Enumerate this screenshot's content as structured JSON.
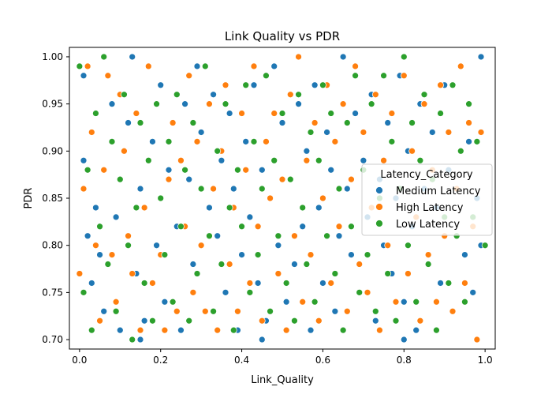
{
  "chart_data": {
    "type": "scatter",
    "title": "Link Quality vs PDR",
    "xlabel": "Link_Quality",
    "ylabel": "PDR",
    "xlim": [
      -0.025,
      1.025
    ],
    "ylim": [
      0.69,
      1.01
    ],
    "xticks": [
      {
        "value": 0.0,
        "label": "0.0"
      },
      {
        "value": 0.2,
        "label": "0.2"
      },
      {
        "value": 0.4,
        "label": "0.4"
      },
      {
        "value": 0.6,
        "label": "0.6"
      },
      {
        "value": 0.8,
        "label": "0.8"
      },
      {
        "value": 1.0,
        "label": "1.0"
      }
    ],
    "yticks": [
      {
        "value": 0.7,
        "label": "0.70"
      },
      {
        "value": 0.75,
        "label": "0.75"
      },
      {
        "value": 0.8,
        "label": "0.80"
      },
      {
        "value": 0.85,
        "label": "0.85"
      },
      {
        "value": 0.9,
        "label": "0.90"
      },
      {
        "value": 0.95,
        "label": "0.95"
      },
      {
        "value": 1.0,
        "label": "1.00"
      }
    ],
    "grid": false,
    "legend": {
      "title": "Latency_Category",
      "position": "center-right"
    },
    "series": [
      {
        "name": "Medium Latency",
        "color": "#1f77b4",
        "points": [
          [
            0.01,
            0.98
          ],
          [
            0.01,
            0.89
          ],
          [
            0.02,
            0.81
          ],
          [
            0.03,
            0.76
          ],
          [
            0.04,
            0.84
          ],
          [
            0.05,
            0.79
          ],
          [
            0.06,
            0.73
          ],
          [
            0.08,
            0.95
          ],
          [
            0.09,
            0.83
          ],
          [
            0.1,
            0.71
          ],
          [
            0.12,
            0.93
          ],
          [
            0.13,
            1.0
          ],
          [
            0.14,
            0.77
          ],
          [
            0.15,
            0.86
          ],
          [
            0.16,
            0.72
          ],
          [
            0.18,
            0.91
          ],
          [
            0.19,
            0.8
          ],
          [
            0.2,
            0.97
          ],
          [
            0.21,
            0.74
          ],
          [
            0.22,
            0.88
          ],
          [
            0.24,
            0.82
          ],
          [
            0.25,
            0.71
          ],
          [
            0.26,
            0.95
          ],
          [
            0.27,
            0.87
          ],
          [
            0.28,
            0.78
          ],
          [
            0.29,
            0.99
          ],
          [
            0.3,
            0.92
          ],
          [
            0.31,
            0.73
          ],
          [
            0.32,
            0.84
          ],
          [
            0.33,
            0.96
          ],
          [
            0.34,
            0.81
          ],
          [
            0.35,
            0.89
          ],
          [
            0.36,
            0.75
          ],
          [
            0.37,
            0.94
          ],
          [
            0.38,
            0.86
          ],
          [
            0.39,
            0.71
          ],
          [
            0.4,
            0.79
          ],
          [
            0.41,
            0.91
          ],
          [
            0.42,
            0.83
          ],
          [
            0.43,
            0.97
          ],
          [
            0.44,
            0.76
          ],
          [
            0.45,
            0.88
          ],
          [
            0.46,
            0.72
          ],
          [
            0.47,
            0.85
          ],
          [
            0.48,
            0.99
          ],
          [
            0.49,
            0.8
          ],
          [
            0.5,
            0.93
          ],
          [
            0.51,
            0.74
          ],
          [
            0.52,
            0.87
          ],
          [
            0.53,
            0.78
          ],
          [
            0.54,
            0.95
          ],
          [
            0.55,
            0.82
          ],
          [
            0.56,
            0.9
          ],
          [
            0.57,
            0.71
          ],
          [
            0.58,
            0.97
          ],
          [
            0.59,
            0.84
          ],
          [
            0.6,
            0.76
          ],
          [
            0.61,
            0.92
          ],
          [
            0.62,
            0.88
          ],
          [
            0.63,
            0.73
          ],
          [
            0.64,
            0.81
          ],
          [
            0.65,
            1.0
          ],
          [
            0.66,
            0.86
          ],
          [
            0.67,
            0.79
          ],
          [
            0.68,
            0.94
          ],
          [
            0.69,
            0.75
          ],
          [
            0.7,
            0.89
          ],
          [
            0.71,
            0.83
          ],
          [
            0.72,
            0.96
          ],
          [
            0.73,
            0.72
          ],
          [
            0.74,
            0.87
          ],
          [
            0.75,
            0.8
          ],
          [
            0.76,
            0.93
          ],
          [
            0.77,
            0.77
          ],
          [
            0.78,
            0.85
          ],
          [
            0.79,
            0.98
          ],
          [
            0.8,
            0.74
          ],
          [
            0.81,
            0.9
          ],
          [
            0.82,
            0.82
          ],
          [
            0.83,
            0.71
          ],
          [
            0.84,
            0.95
          ],
          [
            0.85,
            0.86
          ],
          [
            0.86,
            0.78
          ],
          [
            0.87,
            0.92
          ],
          [
            0.88,
            0.84
          ],
          [
            0.89,
            0.76
          ],
          [
            0.9,
            0.97
          ],
          [
            0.91,
            0.88
          ],
          [
            0.92,
            0.73
          ],
          [
            0.93,
            0.81
          ],
          [
            0.94,
            0.99
          ],
          [
            0.95,
            0.79
          ],
          [
            0.96,
            0.91
          ],
          [
            0.97,
            0.75
          ],
          [
            0.98,
            0.85
          ],
          [
            0.99,
            1.0
          ],
          [
            0.99,
            0.8
          ],
          [
            0.15,
            0.7
          ],
          [
            0.45,
            0.7
          ],
          [
            0.8,
            0.7
          ]
        ]
      },
      {
        "name": "High Latency",
        "color": "#ff7f0e",
        "points": [
          [
            0.0,
            0.77
          ],
          [
            0.01,
            0.86
          ],
          [
            0.02,
            0.99
          ],
          [
            0.03,
            0.92
          ],
          [
            0.04,
            0.8
          ],
          [
            0.05,
            0.72
          ],
          [
            0.06,
            0.88
          ],
          [
            0.07,
            0.98
          ],
          [
            0.08,
            0.79
          ],
          [
            0.09,
            0.74
          ],
          [
            0.1,
            0.96
          ],
          [
            0.11,
            0.9
          ],
          [
            0.12,
            0.81
          ],
          [
            0.13,
            0.77
          ],
          [
            0.14,
            0.94
          ],
          [
            0.15,
            0.71
          ],
          [
            0.16,
            0.84
          ],
          [
            0.17,
            0.99
          ],
          [
            0.18,
            0.76
          ],
          [
            0.19,
            0.95
          ],
          [
            0.2,
            0.79
          ],
          [
            0.21,
            0.71
          ],
          [
            0.22,
            0.87
          ],
          [
            0.23,
            0.93
          ],
          [
            0.24,
            0.73
          ],
          [
            0.25,
            0.89
          ],
          [
            0.26,
            0.82
          ],
          [
            0.27,
            0.98
          ],
          [
            0.28,
            0.75
          ],
          [
            0.29,
            0.91
          ],
          [
            0.3,
            0.8
          ],
          [
            0.31,
            0.73
          ],
          [
            0.32,
            0.95
          ],
          [
            0.33,
            0.86
          ],
          [
            0.34,
            0.71
          ],
          [
            0.35,
            0.9
          ],
          [
            0.36,
            0.97
          ],
          [
            0.37,
            0.78
          ],
          [
            0.38,
            0.84
          ],
          [
            0.39,
            0.73
          ],
          [
            0.4,
            0.94
          ],
          [
            0.41,
            0.88
          ],
          [
            0.42,
            0.76
          ],
          [
            0.43,
            0.99
          ],
          [
            0.44,
            0.82
          ],
          [
            0.45,
            0.72
          ],
          [
            0.46,
            0.91
          ],
          [
            0.47,
            0.85
          ],
          [
            0.48,
            0.94
          ],
          [
            0.49,
            0.77
          ],
          [
            0.5,
            0.87
          ],
          [
            0.51,
            0.71
          ],
          [
            0.52,
            0.96
          ],
          [
            0.53,
            0.81
          ],
          [
            0.54,
            1.0
          ],
          [
            0.55,
            0.74
          ],
          [
            0.56,
            0.89
          ],
          [
            0.57,
            0.79
          ],
          [
            0.58,
            0.93
          ],
          [
            0.59,
            0.72
          ],
          [
            0.6,
            0.85
          ],
          [
            0.61,
            0.97
          ],
          [
            0.62,
            0.76
          ],
          [
            0.63,
            0.91
          ],
          [
            0.64,
            0.82
          ],
          [
            0.65,
            0.95
          ],
          [
            0.66,
            0.73
          ],
          [
            0.67,
            0.87
          ],
          [
            0.68,
            0.99
          ],
          [
            0.69,
            0.78
          ],
          [
            0.7,
            0.92
          ],
          [
            0.71,
            0.75
          ],
          [
            0.72,
            0.84
          ],
          [
            0.73,
            0.96
          ],
          [
            0.74,
            0.71
          ],
          [
            0.75,
            0.89
          ],
          [
            0.76,
            0.8
          ],
          [
            0.77,
            0.94
          ],
          [
            0.78,
            0.74
          ],
          [
            0.79,
            0.86
          ],
          [
            0.8,
            0.98
          ],
          [
            0.81,
            0.77
          ],
          [
            0.82,
            0.9
          ],
          [
            0.83,
            0.83
          ],
          [
            0.84,
            0.72
          ],
          [
            0.85,
            0.95
          ],
          [
            0.86,
            0.79
          ],
          [
            0.87,
            0.88
          ],
          [
            0.88,
            0.74
          ],
          [
            0.89,
            0.97
          ],
          [
            0.9,
            0.81
          ],
          [
            0.91,
            0.92
          ],
          [
            0.92,
            0.73
          ],
          [
            0.93,
            0.86
          ],
          [
            0.94,
            0.99
          ],
          [
            0.95,
            0.76
          ],
          [
            0.96,
            0.93
          ],
          [
            0.97,
            0.82
          ],
          [
            0.98,
            0.7
          ],
          [
            0.99,
            0.92
          ]
        ]
      },
      {
        "name": "Low Latency",
        "color": "#2ca02c",
        "points": [
          [
            0.0,
            0.99
          ],
          [
            0.01,
            0.75
          ],
          [
            0.02,
            0.88
          ],
          [
            0.03,
            0.71
          ],
          [
            0.04,
            0.94
          ],
          [
            0.05,
            0.82
          ],
          [
            0.06,
            1.0
          ],
          [
            0.07,
            0.78
          ],
          [
            0.08,
            0.91
          ],
          [
            0.09,
            0.73
          ],
          [
            0.1,
            0.87
          ],
          [
            0.11,
            0.96
          ],
          [
            0.12,
            0.8
          ],
          [
            0.13,
            0.7
          ],
          [
            0.14,
            0.84
          ],
          [
            0.15,
            0.93
          ],
          [
            0.16,
            0.76
          ],
          [
            0.17,
            0.89
          ],
          [
            0.18,
            0.72
          ],
          [
            0.19,
            0.95
          ],
          [
            0.2,
            0.85
          ],
          [
            0.21,
            0.79
          ],
          [
            0.22,
            0.91
          ],
          [
            0.23,
            0.74
          ],
          [
            0.24,
            0.96
          ],
          [
            0.25,
            0.82
          ],
          [
            0.26,
            0.88
          ],
          [
            0.27,
            0.72
          ],
          [
            0.28,
            0.93
          ],
          [
            0.29,
            0.77
          ],
          [
            0.3,
            0.86
          ],
          [
            0.31,
            0.99
          ],
          [
            0.32,
            0.81
          ],
          [
            0.33,
            0.73
          ],
          [
            0.34,
            0.9
          ],
          [
            0.35,
            0.78
          ],
          [
            0.36,
            0.95
          ],
          [
            0.37,
            0.84
          ],
          [
            0.38,
            0.71
          ],
          [
            0.39,
            0.88
          ],
          [
            0.4,
            0.82
          ],
          [
            0.41,
            0.97
          ],
          [
            0.42,
            0.75
          ],
          [
            0.43,
            0.91
          ],
          [
            0.44,
            0.79
          ],
          [
            0.45,
            0.86
          ],
          [
            0.46,
            0.98
          ],
          [
            0.47,
            0.73
          ],
          [
            0.48,
            0.89
          ],
          [
            0.49,
            0.81
          ],
          [
            0.5,
            0.94
          ],
          [
            0.51,
            0.76
          ],
          [
            0.52,
            0.87
          ],
          [
            0.53,
            0.72
          ],
          [
            0.54,
            0.96
          ],
          [
            0.55,
            0.84
          ],
          [
            0.56,
            0.78
          ],
          [
            0.57,
            0.92
          ],
          [
            0.58,
            0.74
          ],
          [
            0.59,
            0.89
          ],
          [
            0.6,
            0.97
          ],
          [
            0.61,
            0.81
          ],
          [
            0.62,
            0.94
          ],
          [
            0.63,
            0.77
          ],
          [
            0.64,
            0.86
          ],
          [
            0.65,
            0.71
          ],
          [
            0.66,
            0.93
          ],
          [
            0.67,
            0.82
          ],
          [
            0.68,
            0.98
          ],
          [
            0.69,
            0.75
          ],
          [
            0.7,
            0.88
          ],
          [
            0.71,
            0.79
          ],
          [
            0.72,
            0.95
          ],
          [
            0.73,
            0.73
          ],
          [
            0.74,
            0.85
          ],
          [
            0.75,
            0.98
          ],
          [
            0.76,
            0.77
          ],
          [
            0.77,
            0.91
          ],
          [
            0.78,
            0.72
          ],
          [
            0.79,
            0.86
          ],
          [
            0.8,
            1.0
          ],
          [
            0.81,
            0.8
          ],
          [
            0.82,
            0.93
          ],
          [
            0.83,
            0.74
          ],
          [
            0.84,
            0.89
          ],
          [
            0.85,
            0.96
          ],
          [
            0.86,
            0.78
          ],
          [
            0.87,
            0.87
          ],
          [
            0.88,
            0.71
          ],
          [
            0.89,
            0.94
          ],
          [
            0.9,
            0.83
          ],
          [
            0.91,
            0.76
          ],
          [
            0.92,
            0.97
          ],
          [
            0.93,
            0.81
          ],
          [
            0.94,
            0.9
          ],
          [
            0.95,
            0.74
          ],
          [
            0.96,
            0.95
          ],
          [
            0.97,
            0.83
          ],
          [
            0.98,
            0.91
          ],
          [
            1.0,
            0.8
          ]
        ]
      }
    ]
  }
}
